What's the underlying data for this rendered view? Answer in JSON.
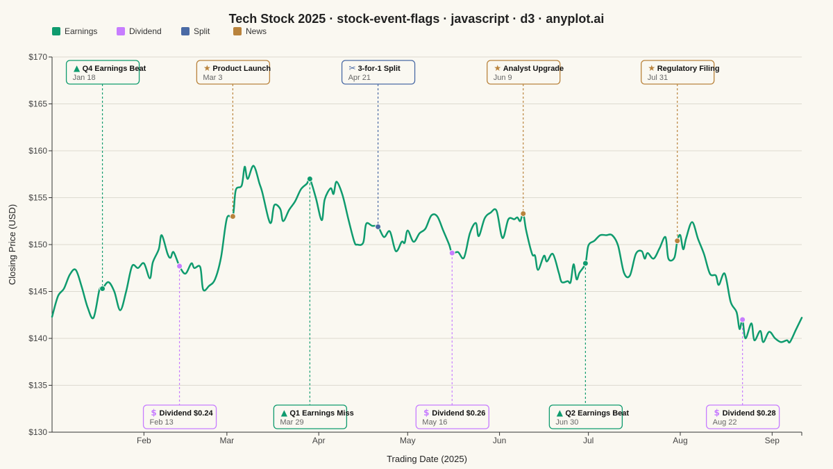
{
  "chart_data": {
    "type": "line",
    "title": "Tech Stock 2025 · stock-event-flags · javascript · d3 · anyplot.ai",
    "xlabel": "Trading Date (2025)",
    "ylabel": "Closing Price (USD)",
    "ylim": [
      130,
      170
    ],
    "y_ticks": [
      130,
      135,
      140,
      145,
      150,
      155,
      160,
      165,
      170
    ],
    "y_tick_format": "$",
    "x_range": [
      "2025-01-01",
      "2025-09-11"
    ],
    "x_ticks": [
      {
        "date": "2025-02-01",
        "label": "Feb"
      },
      {
        "date": "2025-03-01",
        "label": "Mar"
      },
      {
        "date": "2025-04-01",
        "label": "Apr"
      },
      {
        "date": "2025-05-01",
        "label": "May"
      },
      {
        "date": "2025-06-01",
        "label": "Jun"
      },
      {
        "date": "2025-07-01",
        "label": "Jul"
      },
      {
        "date": "2025-08-01",
        "label": "Aug"
      },
      {
        "date": "2025-09-01",
        "label": "Sep"
      }
    ],
    "grid": "horizontal",
    "legend": {
      "position": "top-left",
      "items": [
        {
          "label": "Earnings",
          "color": "#0f9b6e"
        },
        {
          "label": "Dividend",
          "color": "#c77dff"
        },
        {
          "label": "Split",
          "color": "#4a6aa5"
        },
        {
          "label": "News",
          "color": "#b9833c"
        }
      ]
    },
    "series": [
      {
        "color": "#0f9b6e",
        "points": [
          [
            "2025-01-01",
            142.3
          ],
          [
            "2025-01-03",
            144.5
          ],
          [
            "2025-01-05",
            145.3
          ],
          [
            "2025-01-07",
            146.8
          ],
          [
            "2025-01-09",
            147.3
          ],
          [
            "2025-01-11",
            145.5
          ],
          [
            "2025-01-13",
            143.3
          ],
          [
            "2025-01-15",
            142.2
          ],
          [
            "2025-01-17",
            145.2
          ],
          [
            "2025-01-18",
            145.3
          ],
          [
            "2025-01-20",
            146.0
          ],
          [
            "2025-01-22",
            145.0
          ],
          [
            "2025-01-24",
            143.0
          ],
          [
            "2025-01-26",
            145.0
          ],
          [
            "2025-01-28",
            147.7
          ],
          [
            "2025-01-30",
            147.5
          ],
          [
            "2025-02-01",
            148.0
          ],
          [
            "2025-02-03",
            146.4
          ],
          [
            "2025-02-04",
            148.1
          ],
          [
            "2025-02-06",
            149.5
          ],
          [
            "2025-02-07",
            151.0
          ],
          [
            "2025-02-09",
            149.0
          ],
          [
            "2025-02-10",
            148.6
          ],
          [
            "2025-02-11",
            149.2
          ],
          [
            "2025-02-13",
            147.7
          ],
          [
            "2025-02-15",
            146.9
          ],
          [
            "2025-02-17",
            148.0
          ],
          [
            "2025-02-18",
            147.5
          ],
          [
            "2025-02-20",
            147.6
          ],
          [
            "2025-02-21",
            145.2
          ],
          [
            "2025-02-23",
            145.6
          ],
          [
            "2025-02-25",
            146.3
          ],
          [
            "2025-02-27",
            148.6
          ],
          [
            "2025-03-01",
            152.8
          ],
          [
            "2025-03-03",
            153.0
          ],
          [
            "2025-03-04",
            155.8
          ],
          [
            "2025-03-06",
            156.3
          ],
          [
            "2025-03-07",
            158.3
          ],
          [
            "2025-03-08",
            157.0
          ],
          [
            "2025-03-10",
            158.4
          ],
          [
            "2025-03-12",
            156.5
          ],
          [
            "2025-03-13",
            155.5
          ],
          [
            "2025-03-15",
            152.8
          ],
          [
            "2025-03-16",
            152.4
          ],
          [
            "2025-03-17",
            154.2
          ],
          [
            "2025-03-19",
            153.8
          ],
          [
            "2025-03-20",
            152.5
          ],
          [
            "2025-03-22",
            153.7
          ],
          [
            "2025-03-24",
            154.6
          ],
          [
            "2025-03-26",
            155.9
          ],
          [
            "2025-03-28",
            156.5
          ],
          [
            "2025-03-29",
            157.0
          ],
          [
            "2025-03-31",
            155.0
          ],
          [
            "2025-04-02",
            152.6
          ],
          [
            "2025-04-03",
            154.8
          ],
          [
            "2025-04-05",
            156.0
          ],
          [
            "2025-04-06",
            155.4
          ],
          [
            "2025-04-07",
            156.7
          ],
          [
            "2025-04-09",
            155.3
          ],
          [
            "2025-04-11",
            152.7
          ],
          [
            "2025-04-13",
            150.3
          ],
          [
            "2025-04-14",
            150.0
          ],
          [
            "2025-04-16",
            150.2
          ],
          [
            "2025-04-17",
            152.2
          ],
          [
            "2025-04-19",
            152.0
          ],
          [
            "2025-04-21",
            151.9
          ],
          [
            "2025-04-23",
            150.8
          ],
          [
            "2025-04-25",
            151.4
          ],
          [
            "2025-04-27",
            149.3
          ],
          [
            "2025-04-29",
            150.3
          ],
          [
            "2025-04-30",
            150.2
          ],
          [
            "2025-05-01",
            151.5
          ],
          [
            "2025-05-03",
            150.3
          ],
          [
            "2025-05-05",
            151.2
          ],
          [
            "2025-05-07",
            151.7
          ],
          [
            "2025-05-09",
            153.1
          ],
          [
            "2025-05-11",
            153.0
          ],
          [
            "2025-05-13",
            151.5
          ],
          [
            "2025-05-15",
            150.0
          ],
          [
            "2025-05-16",
            149.1
          ],
          [
            "2025-05-18",
            149.2
          ],
          [
            "2025-05-20",
            148.6
          ],
          [
            "2025-05-22",
            151.2
          ],
          [
            "2025-05-24",
            152.3
          ],
          [
            "2025-05-25",
            150.9
          ],
          [
            "2025-05-27",
            152.8
          ],
          [
            "2025-05-29",
            153.4
          ],
          [
            "2025-05-31",
            153.6
          ],
          [
            "2025-06-02",
            150.7
          ],
          [
            "2025-06-04",
            152.7
          ],
          [
            "2025-06-06",
            152.7
          ],
          [
            "2025-06-07",
            152.9
          ],
          [
            "2025-06-08",
            152.5
          ],
          [
            "2025-06-09",
            153.3
          ],
          [
            "2025-06-10",
            151.5
          ],
          [
            "2025-06-12",
            149.0
          ],
          [
            "2025-06-13",
            148.8
          ],
          [
            "2025-06-14",
            147.3
          ],
          [
            "2025-06-16",
            148.8
          ],
          [
            "2025-06-17",
            148.2
          ],
          [
            "2025-06-19",
            149.0
          ],
          [
            "2025-06-21",
            147.0
          ],
          [
            "2025-06-22",
            146.0
          ],
          [
            "2025-06-24",
            146.1
          ],
          [
            "2025-06-25",
            146.0
          ],
          [
            "2025-06-26",
            147.9
          ],
          [
            "2025-06-27",
            146.3
          ],
          [
            "2025-06-28",
            147.0
          ],
          [
            "2025-06-30",
            148.0
          ],
          [
            "2025-07-01",
            149.9
          ],
          [
            "2025-07-03",
            150.4
          ],
          [
            "2025-07-05",
            151.0
          ],
          [
            "2025-07-07",
            151.0
          ],
          [
            "2025-07-09",
            151.0
          ],
          [
            "2025-07-11",
            149.9
          ],
          [
            "2025-07-13",
            147.0
          ],
          [
            "2025-07-15",
            146.7
          ],
          [
            "2025-07-17",
            149.0
          ],
          [
            "2025-07-19",
            149.3
          ],
          [
            "2025-07-20",
            148.5
          ],
          [
            "2025-07-21",
            149.1
          ],
          [
            "2025-07-23",
            148.5
          ],
          [
            "2025-07-25",
            149.6
          ],
          [
            "2025-07-27",
            150.8
          ],
          [
            "2025-07-28",
            148.5
          ],
          [
            "2025-07-30",
            148.6
          ],
          [
            "2025-07-31",
            150.4
          ],
          [
            "2025-08-01",
            151.0
          ],
          [
            "2025-08-02",
            149.5
          ],
          [
            "2025-08-03",
            150.7
          ],
          [
            "2025-08-05",
            152.4
          ],
          [
            "2025-08-07",
            150.6
          ],
          [
            "2025-08-09",
            149.0
          ],
          [
            "2025-08-11",
            146.9
          ],
          [
            "2025-08-13",
            146.7
          ],
          [
            "2025-08-14",
            145.7
          ],
          [
            "2025-08-16",
            146.9
          ],
          [
            "2025-08-18",
            143.9
          ],
          [
            "2025-08-20",
            142.8
          ],
          [
            "2025-08-21",
            141.0
          ],
          [
            "2025-08-22",
            142.0
          ],
          [
            "2025-08-23",
            140.0
          ],
          [
            "2025-08-25",
            141.6
          ],
          [
            "2025-08-26",
            139.8
          ],
          [
            "2025-08-28",
            140.8
          ],
          [
            "2025-08-29",
            139.6
          ],
          [
            "2025-08-31",
            140.7
          ],
          [
            "2025-09-02",
            140.0
          ],
          [
            "2025-09-04",
            139.6
          ],
          [
            "2025-09-06",
            139.8
          ],
          [
            "2025-09-07",
            139.6
          ],
          [
            "2025-09-09",
            140.9
          ],
          [
            "2025-09-11",
            142.2
          ]
        ]
      }
    ],
    "events": [
      {
        "type": "Earnings",
        "title": "Q4 Earnings Beat",
        "date_label": "Jan 18",
        "date": "2025-01-18",
        "price": 145.3,
        "position": "top",
        "glyph": "▲"
      },
      {
        "type": "Dividend",
        "title": "Dividend $0.24",
        "date_label": "Feb 13",
        "date": "2025-02-13",
        "price": 147.7,
        "position": "bottom",
        "glyph": "$"
      },
      {
        "type": "News",
        "title": "Product Launch",
        "date_label": "Mar 3",
        "date": "2025-03-03",
        "price": 153.0,
        "position": "top",
        "glyph": "★"
      },
      {
        "type": "Earnings",
        "title": "Q1 Earnings Miss",
        "date_label": "Mar 29",
        "date": "2025-03-29",
        "price": 157.0,
        "position": "bottom",
        "glyph": "▲"
      },
      {
        "type": "Split",
        "title": "3-for-1 Split",
        "date_label": "Apr 21",
        "date": "2025-04-21",
        "price": 151.9,
        "position": "top",
        "glyph": "✂"
      },
      {
        "type": "Dividend",
        "title": "Dividend $0.26",
        "date_label": "May 16",
        "date": "2025-05-16",
        "price": 149.1,
        "position": "bottom",
        "glyph": "$"
      },
      {
        "type": "News",
        "title": "Analyst Upgrade",
        "date_label": "Jun 9",
        "date": "2025-06-09",
        "price": 153.3,
        "position": "top",
        "glyph": "★"
      },
      {
        "type": "Earnings",
        "title": "Q2 Earnings Beat",
        "date_label": "Jun 30",
        "date": "2025-06-30",
        "price": 148.0,
        "position": "bottom",
        "glyph": "▲"
      },
      {
        "type": "News",
        "title": "Regulatory Filing",
        "date_label": "Jul 31",
        "date": "2025-07-31",
        "price": 150.4,
        "position": "top",
        "glyph": "★"
      },
      {
        "type": "Dividend",
        "title": "Dividend $0.28",
        "date_label": "Aug 22",
        "date": "2025-08-22",
        "price": 142.0,
        "position": "bottom",
        "glyph": "$"
      }
    ]
  }
}
